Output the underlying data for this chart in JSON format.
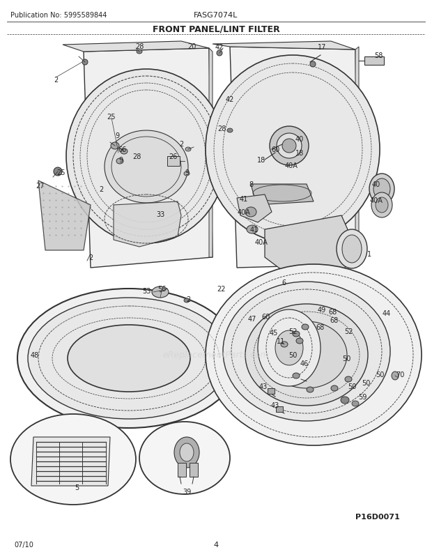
{
  "title": "FRONT PANEL/LINT FILTER",
  "model": "FASG7074L",
  "publication": "Publication No: 5995589844",
  "footer_date": "07/10",
  "footer_page": "4",
  "part_id": "P16D0071",
  "bg_color": "#ffffff",
  "line_color": "#333333",
  "text_color": "#222222",
  "fig_width": 6.2,
  "fig_height": 8.03,
  "dpi": 100,
  "watermark": "eReplacementParts.com"
}
